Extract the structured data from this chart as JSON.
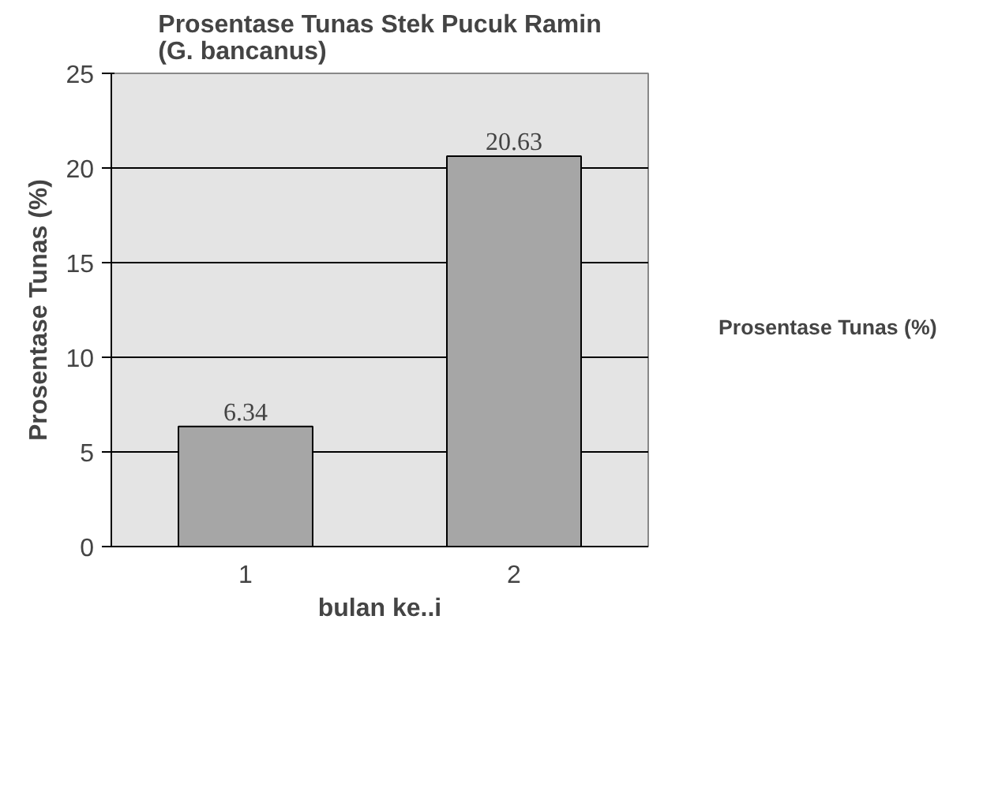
{
  "chart_data": {
    "type": "bar",
    "title": "Prosentase Tunas Stek Pucuk Ramin\n(G. bancanus)",
    "xlabel": "bulan ke..i",
    "ylabel": "Prosentase Tunas (%)",
    "categories": [
      "1",
      "2"
    ],
    "series": [
      {
        "name": "Prosentase Tunas (%)",
        "color": "#a6a6a6",
        "values": [
          6.34,
          20.63
        ]
      }
    ],
    "ylim": [
      0,
      25
    ],
    "yticks": [
      0,
      5,
      10,
      15,
      20,
      25
    ],
    "grid": "y",
    "legend": "right",
    "data_labels": true
  }
}
